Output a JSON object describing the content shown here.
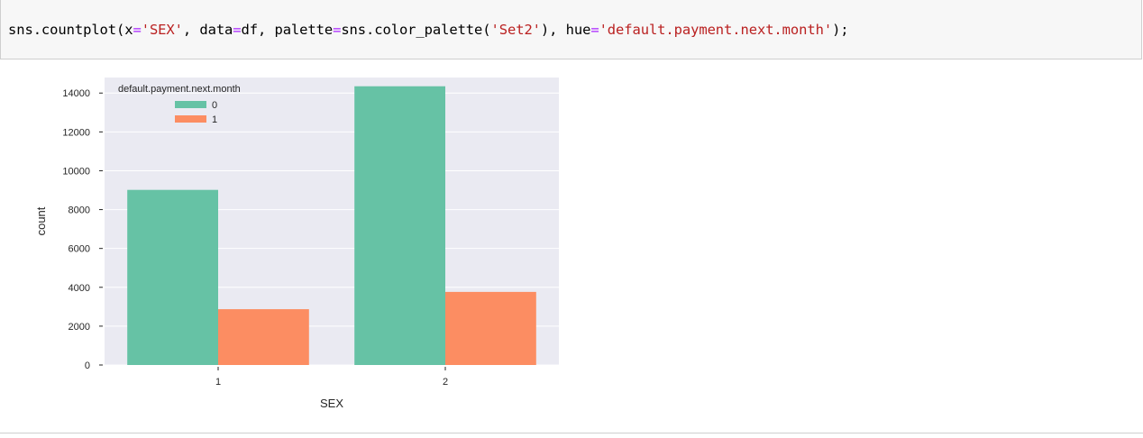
{
  "code_cell": {
    "tokens": [
      {
        "text": "sns.countplot(x",
        "kind": "plain"
      },
      {
        "text": "=",
        "kind": "op"
      },
      {
        "text": "'SEX'",
        "kind": "str"
      },
      {
        "text": ", data",
        "kind": "plain"
      },
      {
        "text": "=",
        "kind": "op"
      },
      {
        "text": "df, palette",
        "kind": "plain"
      },
      {
        "text": "=",
        "kind": "op"
      },
      {
        "text": "sns.color_palette(",
        "kind": "plain"
      },
      {
        "text": "'Set2'",
        "kind": "str"
      },
      {
        "text": "), hue",
        "kind": "plain"
      },
      {
        "text": "=",
        "kind": "op"
      },
      {
        "text": "'default.payment.next.month'",
        "kind": "str"
      },
      {
        "text": ");",
        "kind": "plain"
      }
    ]
  },
  "chart_data": {
    "type": "bar",
    "title": "",
    "xlabel": "SEX",
    "ylabel": "count",
    "categories": [
      "1",
      "2"
    ],
    "ylim": [
      0,
      14800
    ],
    "yticks": [
      0,
      2000,
      4000,
      6000,
      8000,
      10000,
      12000,
      14000
    ],
    "grid": true,
    "legend": {
      "title": "default.payment.next.month",
      "placement": "top-left"
    },
    "series": [
      {
        "name": "0",
        "color": "#66c2a5",
        "values": [
          9015,
          14349
        ]
      },
      {
        "name": "1",
        "color": "#fc8d62",
        "values": [
          2873,
          3763
        ]
      }
    ]
  },
  "colors": {
    "plot_background": "#eaeaf2",
    "grid": "#ffffff",
    "code_background": "#f7f7f7",
    "string": "#ba2121",
    "operator": "#aa22ff"
  }
}
